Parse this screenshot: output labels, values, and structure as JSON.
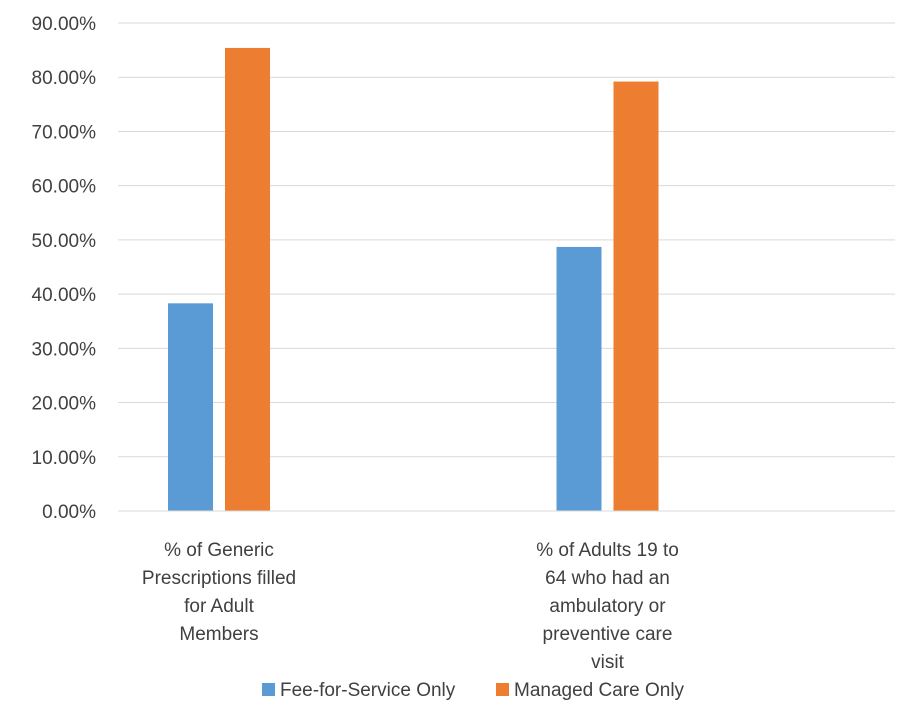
{
  "chart_data": {
    "type": "bar",
    "categories": [
      [
        "% of Generic",
        "Prescriptions filled",
        "for Adult",
        "Members"
      ],
      [
        "% of Adults 19 to",
        "64 who had an",
        "ambulatory or",
        "preventive care",
        "visit"
      ]
    ],
    "series": [
      {
        "name": "Fee-for-Service Only",
        "color": "#5b9bd5",
        "values": [
          0.383,
          0.487
        ]
      },
      {
        "name": "Managed Care Only",
        "color": "#ed7d31",
        "values": [
          0.854,
          0.792
        ]
      }
    ],
    "ylim": [
      0,
      0.9
    ],
    "yticks": [
      0,
      0.1,
      0.2,
      0.3,
      0.4,
      0.5,
      0.6,
      0.7,
      0.8,
      0.9
    ],
    "ytick_labels": [
      "0.00%",
      "10.00%",
      "20.00%",
      "30.00%",
      "40.00%",
      "50.00%",
      "60.00%",
      "70.00%",
      "80.00%",
      "90.00%"
    ],
    "grid": true,
    "legend_position": "bottom"
  }
}
